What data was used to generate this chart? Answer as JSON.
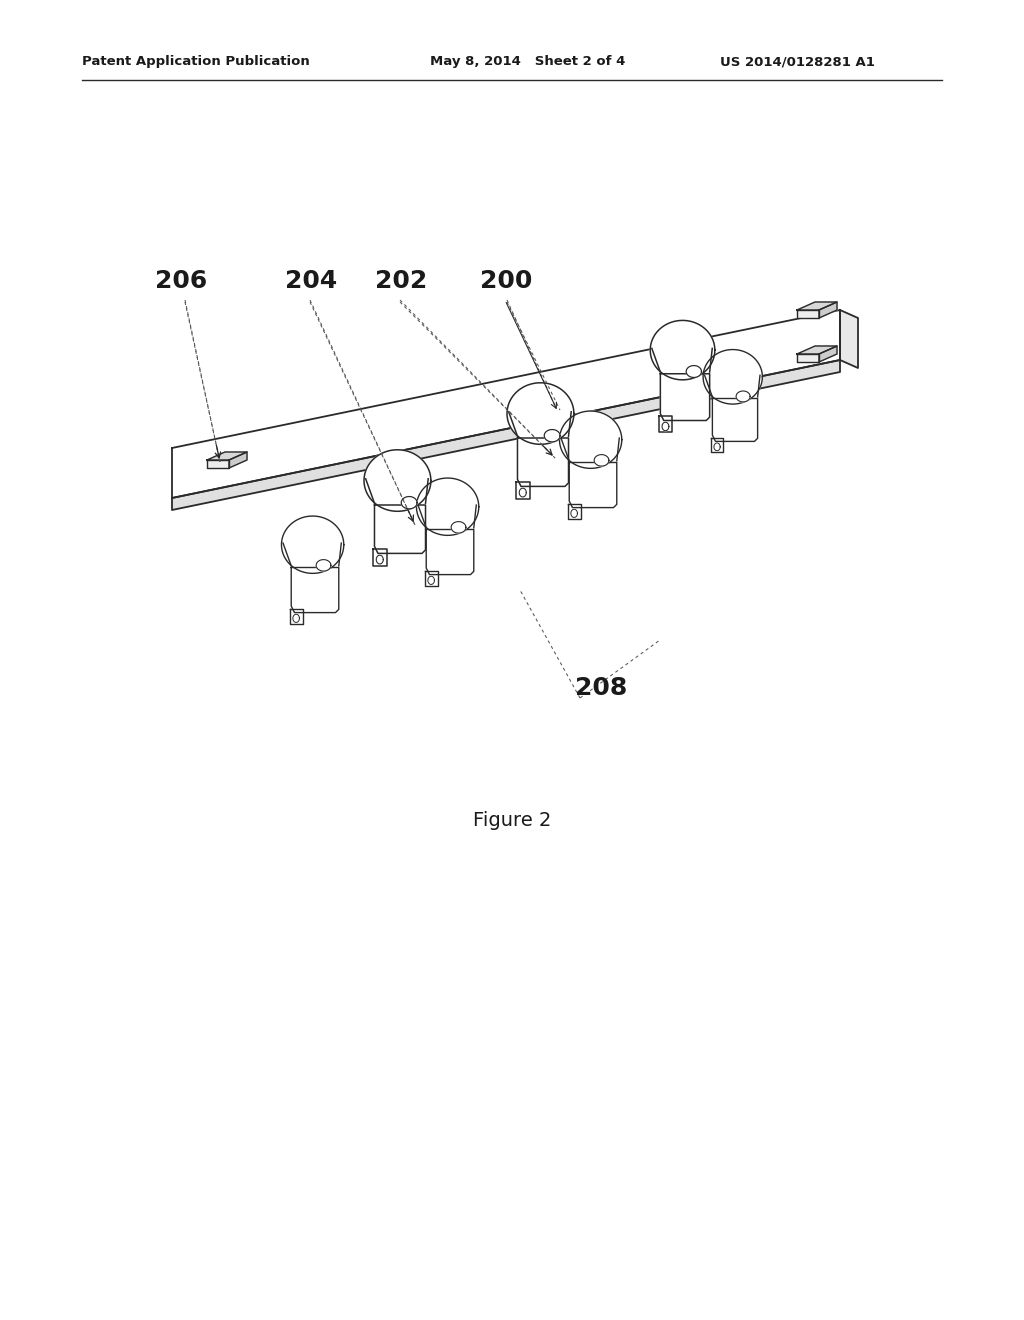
{
  "title": "Figure 2",
  "header_left": "Patent Application Publication",
  "header_mid": "May 8, 2014   Sheet 2 of 4",
  "header_right": "US 2014/0128281 A1",
  "background_color": "#ffffff",
  "line_color": "#2a2a2a",
  "label_206": "206",
  "label_204": "204",
  "label_202": "202",
  "label_200": "200",
  "label_208": "208"
}
